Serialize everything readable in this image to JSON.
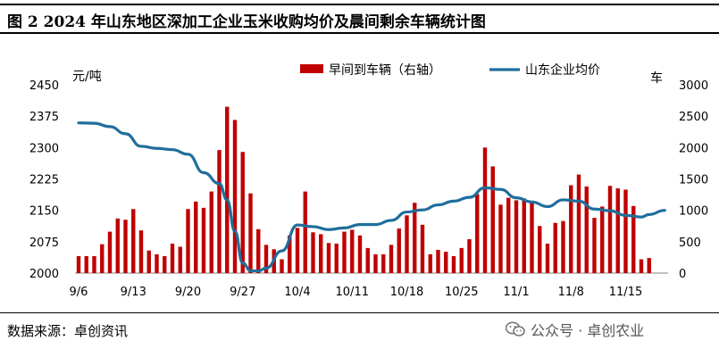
{
  "title": "图 2 2024 年山东地区深加工企业玉米收购均价及晨间剩余车辆统计图",
  "source": "数据来源：卓创资讯",
  "watermark": "公众号 · 卓创农业",
  "colors": {
    "bar": "#c00000",
    "line": "#1f6e9c",
    "text": "#000000"
  },
  "chart_data": {
    "type": "bar+line",
    "left_axis_label": "元/吨",
    "right_axis_label": "车",
    "left_ylim": [
      2000,
      2450
    ],
    "left_ticks": [
      2000,
      2075,
      2150,
      2225,
      2300,
      2375,
      2450
    ],
    "right_ylim": [
      0,
      3000
    ],
    "right_ticks": [
      0,
      500,
      1000,
      1500,
      2000,
      2500,
      3000
    ],
    "x_tick_labels": [
      "9/6",
      "9/13",
      "9/20",
      "9/27",
      "10/4",
      "10/11",
      "10/18",
      "10/25",
      "11/1",
      "11/8",
      "11/15"
    ],
    "x_tick_index": [
      0,
      7,
      14,
      21,
      28,
      35,
      42,
      49,
      56,
      63,
      70
    ],
    "legend": [
      {
        "name": "早间到车辆（右轴）",
        "type": "bar"
      },
      {
        "name": "山东企业均价",
        "type": "line"
      }
    ],
    "bars": [
      [
        0,
        270
      ],
      [
        1,
        270
      ],
      [
        2,
        270
      ],
      [
        3,
        460
      ],
      [
        4,
        660
      ],
      [
        5,
        870
      ],
      [
        6,
        850
      ],
      [
        7,
        1020
      ],
      [
        8,
        680
      ],
      [
        9,
        360
      ],
      [
        10,
        300
      ],
      [
        11,
        270
      ],
      [
        12,
        470
      ],
      [
        13,
        420
      ],
      [
        14,
        1020
      ],
      [
        15,
        1140
      ],
      [
        16,
        1040
      ],
      [
        17,
        1300
      ],
      [
        18,
        1960
      ],
      [
        19,
        2650
      ],
      [
        20,
        2440
      ],
      [
        21,
        1930
      ],
      [
        22,
        1270
      ],
      [
        23,
        700
      ],
      [
        24,
        450
      ],
      [
        25,
        380
      ],
      [
        26,
        220
      ],
      [
        27,
        600
      ],
      [
        28,
        720
      ],
      [
        29,
        1300
      ],
      [
        30,
        650
      ],
      [
        31,
        620
      ],
      [
        32,
        480
      ],
      [
        33,
        470
      ],
      [
        34,
        660
      ],
      [
        35,
        690
      ],
      [
        36,
        600
      ],
      [
        37,
        400
      ],
      [
        38,
        300
      ],
      [
        39,
        300
      ],
      [
        40,
        450
      ],
      [
        41,
        710
      ],
      [
        42,
        920
      ],
      [
        43,
        1120
      ],
      [
        44,
        770
      ],
      [
        45,
        300
      ],
      [
        46,
        370
      ],
      [
        47,
        340
      ],
      [
        48,
        270
      ],
      [
        49,
        400
      ],
      [
        50,
        540
      ],
      [
        51,
        1260
      ],
      [
        52,
        2000
      ],
      [
        53,
        1700
      ],
      [
        54,
        1090
      ],
      [
        55,
        1200
      ],
      [
        56,
        1160
      ],
      [
        57,
        1190
      ],
      [
        58,
        1130
      ],
      [
        59,
        750
      ],
      [
        60,
        470
      ],
      [
        61,
        800
      ],
      [
        62,
        830
      ],
      [
        63,
        1400
      ],
      [
        64,
        1570
      ],
      [
        65,
        1380
      ],
      [
        66,
        880
      ],
      [
        67,
        1060
      ],
      [
        68,
        1390
      ],
      [
        69,
        1350
      ],
      [
        70,
        1330
      ],
      [
        71,
        1070
      ],
      [
        72,
        220
      ],
      [
        73,
        240
      ]
    ],
    "line": [
      [
        0,
        2359
      ],
      [
        2,
        2358
      ],
      [
        4,
        2350
      ],
      [
        6,
        2333
      ],
      [
        8,
        2303
      ],
      [
        10,
        2298
      ],
      [
        12,
        2295
      ],
      [
        14,
        2284
      ],
      [
        16,
        2240
      ],
      [
        18,
        2214
      ],
      [
        19,
        2175
      ],
      [
        20,
        2100
      ],
      [
        21,
        2024
      ],
      [
        22,
        2006
      ],
      [
        23,
        2005
      ],
      [
        24,
        2012
      ],
      [
        26,
        2053
      ],
      [
        28,
        2115
      ],
      [
        30,
        2111
      ],
      [
        32,
        2104
      ],
      [
        34,
        2108
      ],
      [
        36,
        2116
      ],
      [
        38,
        2116
      ],
      [
        40,
        2126
      ],
      [
        42,
        2146
      ],
      [
        44,
        2151
      ],
      [
        46,
        2163
      ],
      [
        48,
        2172
      ],
      [
        50,
        2181
      ],
      [
        52,
        2204
      ],
      [
        54,
        2200
      ],
      [
        56,
        2180
      ],
      [
        58,
        2170
      ],
      [
        60,
        2159
      ],
      [
        62,
        2175
      ],
      [
        64,
        2172
      ],
      [
        66,
        2153
      ],
      [
        68,
        2149
      ],
      [
        70,
        2138
      ],
      [
        72,
        2134
      ],
      [
        73,
        2140
      ],
      [
        75,
        2150
      ]
    ]
  }
}
